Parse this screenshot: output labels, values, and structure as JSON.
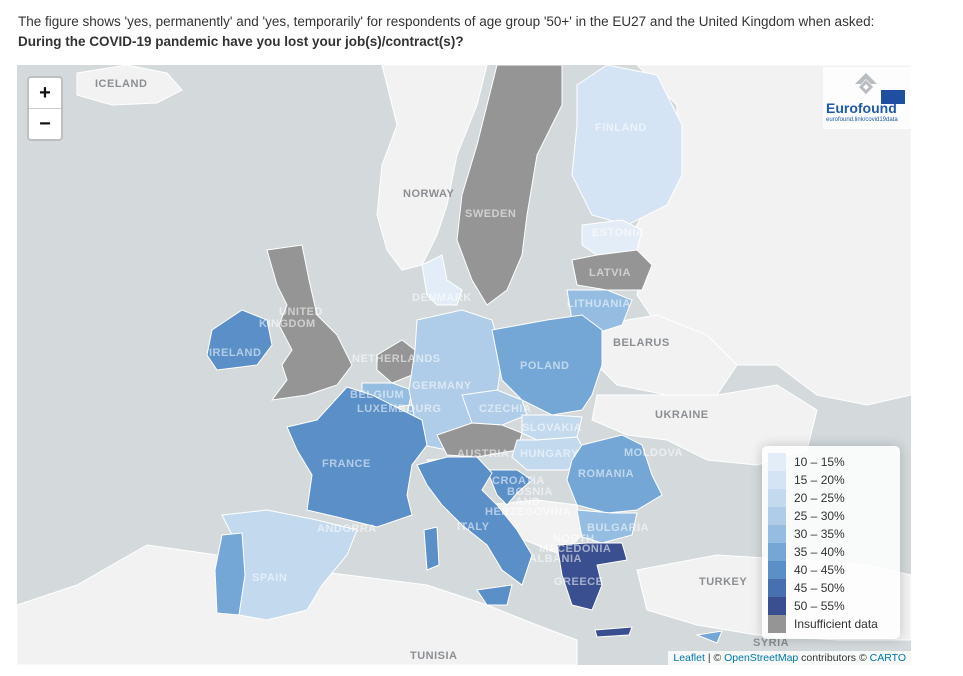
{
  "caption": {
    "line1": "The figure shows 'yes, permanently' and 'yes, temporarily' for respondents of age group '50+' in the EU27 and the United Kingdom when asked:",
    "question": "During the COVID-19 pandemic have you lost your job(s)/contract(s)?"
  },
  "zoom": {
    "in_label": "+",
    "out_label": "−"
  },
  "logo": {
    "name": "Eurofound",
    "link": "eurofound.link/covid19data"
  },
  "colors": {
    "c10_15": "#e3edf8",
    "c15_20": "#d4e4f4",
    "c20_25": "#c3d9ee",
    "c25_30": "#afcde8",
    "c30_35": "#94bde1",
    "c35_40": "#74a7d6",
    "c40_45": "#5a8fc8",
    "c45_50": "#4670b0",
    "c50_55": "#3a4f8f",
    "insufficient": "#959595"
  },
  "legend": [
    {
      "label": "10 – 15%",
      "color": "#e3edf8"
    },
    {
      "label": "15 – 20%",
      "color": "#d4e4f4"
    },
    {
      "label": "20 – 25%",
      "color": "#c3d9ee"
    },
    {
      "label": "25 – 30%",
      "color": "#afcde8"
    },
    {
      "label": "30 – 35%",
      "color": "#94bde1"
    },
    {
      "label": "35 – 40%",
      "color": "#74a7d6"
    },
    {
      "label": "40 – 45%",
      "color": "#5a8fc8"
    },
    {
      "label": "45 – 50%",
      "color": "#4670b0"
    },
    {
      "label": "50 – 55%",
      "color": "#3a4f8f"
    },
    {
      "label": "Insufficient data",
      "color": "#959595"
    }
  ],
  "labels": {
    "iceland": "ICELAND",
    "finland": "FINLAND",
    "norway": "NORWAY",
    "sweden": "SWEDEN",
    "estonia": "ESTONIA",
    "latvia": "LATVIA",
    "lithuania": "LITHUANIA",
    "denmark": "DENMARK",
    "uk1": "UNITED",
    "uk2": "KINGDOM",
    "ireland": "IRELAND",
    "netherlands": "NETHERLANDS",
    "belgium": "BELGIUM",
    "luxembourg": "LUXEMBOURG",
    "germany": "GERMANY",
    "poland": "POLAND",
    "belarus": "BELARUS",
    "czechia": "CZECHIA",
    "slovakia": "SLOVAKIA",
    "ukraine": "UKRAINE",
    "austria": "AUSTRIA",
    "hungary": "HUNGARY",
    "moldova": "MOLDOVA",
    "romania": "ROMANIA",
    "france": "FRANCE",
    "croatia": "CROATIA",
    "bosnia1": "BOSNIA",
    "bosnia2": "AND",
    "bosnia3": "HERZEGOVINA",
    "bulgaria": "BULGARIA",
    "andorra": "ANDORRA",
    "italy": "ITALY",
    "nmac1": "NORTH",
    "nmac2": "MACEDONIA",
    "albania": "ALBANIA",
    "greece": "GREECE",
    "spain": "SPAIN",
    "turkey": "TURKEY",
    "tunisia": "TUNISIA",
    "syria": "SYRIA"
  },
  "attribution": {
    "leaflet": "Leaflet",
    "sep": " | © ",
    "osm": "OpenStreetMap",
    "contrib": " contributors © ",
    "carto": "CARTO"
  }
}
